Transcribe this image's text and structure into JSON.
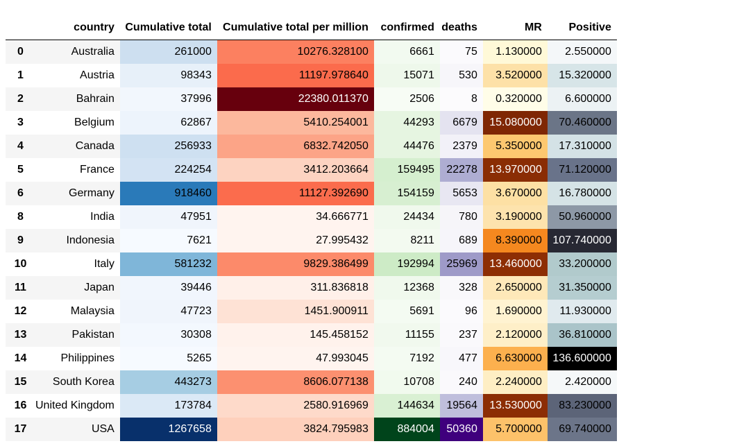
{
  "table": {
    "headers": [
      "",
      "country",
      "Cumulative total",
      "Cumulative total per million",
      "confirmed",
      "deaths",
      "MR",
      "Positive"
    ],
    "rows": [
      {
        "idx": "0",
        "country": "Australia",
        "cum": "261000",
        "pm": "10276.328100",
        "conf": "6661",
        "deaths": "75",
        "mr": "1.130000",
        "pos": "2.550000",
        "bg": [
          "#cddff0",
          "#fc8060",
          "#f2faf0",
          "#fbfafd",
          "#fff9d8",
          "#f4f7f9"
        ],
        "fg": [
          "#000",
          "#000",
          "#000",
          "#000",
          "#000",
          "#000"
        ]
      },
      {
        "idx": "1",
        "country": "Austria",
        "cum": "98343",
        "pm": "11197.978640",
        "conf": "15071",
        "deaths": "530",
        "mr": "3.520000",
        "pos": "15.320000",
        "bg": [
          "#e7f0f9",
          "#fb6b4c",
          "#eef8eb",
          "#f7f6fa",
          "#fde1a8",
          "#d7e5e8"
        ],
        "fg": [
          "#000",
          "#000",
          "#000",
          "#000",
          "#000",
          "#000"
        ]
      },
      {
        "idx": "2",
        "country": "Bahrain",
        "cum": "37996",
        "pm": "22380.011370",
        "conf": "2506",
        "deaths": "8",
        "mr": "0.320000",
        "pos": "6.600000",
        "bg": [
          "#f2f7fd",
          "#67000d",
          "#f7fcf5",
          "#fcfbfd",
          "#fffde8",
          "#ecf2f4"
        ],
        "fg": [
          "#000",
          "#fff",
          "#000",
          "#000",
          "#000",
          "#000"
        ]
      },
      {
        "idx": "3",
        "country": "Belgium",
        "cum": "62867",
        "pm": "5410.254001",
        "conf": "44293",
        "deaths": "6679",
        "mr": "15.080000",
        "pos": "70.460000",
        "bg": [
          "#edf4fc",
          "#fcb89d",
          "#e6f5e1",
          "#e4e3f0",
          "#7f2704",
          "#6b7587"
        ],
        "fg": [
          "#000",
          "#000",
          "#000",
          "#000",
          "#fff",
          "#000"
        ]
      },
      {
        "idx": "4",
        "country": "Canada",
        "cum": "256933",
        "pm": "6832.742050",
        "conf": "44476",
        "deaths": "2379",
        "mr": "5.350000",
        "pos": "17.310000",
        "bg": [
          "#cee0f1",
          "#fca487",
          "#e6f5e1",
          "#f2f1f8",
          "#fdc870",
          "#d4e2e6"
        ],
        "fg": [
          "#000",
          "#000",
          "#000",
          "#000",
          "#000",
          "#000"
        ]
      },
      {
        "idx": "5",
        "country": "France",
        "cum": "224254",
        "pm": "3412.203664",
        "conf": "159495",
        "deaths": "22278",
        "mr": "13.970000",
        "pos": "71.120000",
        "bg": [
          "#d3e3f3",
          "#fdd3c1",
          "#d5efcf",
          "#aeadd2",
          "#8a2d04",
          "#69738a"
        ],
        "fg": [
          "#000",
          "#000",
          "#000",
          "#000",
          "#fff",
          "#000"
        ]
      },
      {
        "idx": "6",
        "country": "Germany",
        "cum": "918460",
        "pm": "11127.392690",
        "conf": "154159",
        "deaths": "5653",
        "mr": "3.670000",
        "pos": "16.780000",
        "bg": [
          "#2a7ab9",
          "#fb6c4d",
          "#d7efd1",
          "#e8e7f2",
          "#fde0a4",
          "#d5e3e6"
        ],
        "fg": [
          "#000",
          "#000",
          "#000",
          "#000",
          "#000",
          "#000"
        ]
      },
      {
        "idx": "8",
        "country": "India",
        "cum": "47951",
        "pm": "34.666771",
        "conf": "24434",
        "deaths": "780",
        "mr": "3.190000",
        "pos": "50.960000",
        "bg": [
          "#f0f5fc",
          "#fff4ef",
          "#f0f9ed",
          "#f6f5f9",
          "#fde3ad",
          "#8d98a6"
        ],
        "fg": [
          "#000",
          "#000",
          "#000",
          "#000",
          "#000",
          "#000"
        ]
      },
      {
        "idx": "9",
        "country": "Indonesia",
        "cum": "7621",
        "pm": "27.995432",
        "conf": "8211",
        "deaths": "689",
        "mr": "8.390000",
        "pos": "107.740000",
        "bg": [
          "#f6faff",
          "#fff4ef",
          "#f3faf0",
          "#f6f5fa",
          "#f5881f",
          "#272833"
        ],
        "fg": [
          "#000",
          "#000",
          "#000",
          "#000",
          "#000",
          "#fff"
        ]
      },
      {
        "idx": "10",
        "country": "Italy",
        "cum": "581232",
        "pm": "9829.386499",
        "conf": "192994",
        "deaths": "25969",
        "mr": "13.460000",
        "pos": "33.200000",
        "bg": [
          "#7fb6d9",
          "#fc8a6a",
          "#cdebc6",
          "#9e9ac8",
          "#8d2e04",
          "#b1cacc"
        ],
        "fg": [
          "#000",
          "#000",
          "#000",
          "#000",
          "#fff",
          "#000"
        ]
      },
      {
        "idx": "11",
        "country": "Japan",
        "cum": "39446",
        "pm": "311.836818",
        "conf": "12368",
        "deaths": "328",
        "mr": "2.650000",
        "pos": "31.350000",
        "bg": [
          "#f1f6fd",
          "#fff0e9",
          "#f0f9ed",
          "#f9f8fb",
          "#fee8b9",
          "#b5cdd0"
        ],
        "fg": [
          "#000",
          "#000",
          "#000",
          "#000",
          "#000",
          "#000"
        ]
      },
      {
        "idx": "12",
        "country": "Malaysia",
        "cum": "47723",
        "pm": "1451.900911",
        "conf": "5691",
        "deaths": "96",
        "mr": "1.690000",
        "pos": "11.930000",
        "bg": [
          "#f0f5fc",
          "#fee2d5",
          "#f4fbf2",
          "#fbfafd",
          "#fff3d1",
          "#e0eaee"
        ],
        "fg": [
          "#000",
          "#000",
          "#000",
          "#000",
          "#000",
          "#000"
        ]
      },
      {
        "idx": "13",
        "country": "Pakistan",
        "cum": "30308",
        "pm": "145.458152",
        "conf": "11155",
        "deaths": "237",
        "mr": "2.120000",
        "pos": "36.810000",
        "bg": [
          "#f3f8fe",
          "#fff2ec",
          "#f1f9ee",
          "#faf9fc",
          "#feefc8",
          "#aac4c9"
        ],
        "fg": [
          "#000",
          "#000",
          "#000",
          "#000",
          "#000",
          "#000"
        ]
      },
      {
        "idx": "14",
        "country": "Philippines",
        "cum": "5265",
        "pm": "47.993045",
        "conf": "7192",
        "deaths": "477",
        "mr": "6.630000",
        "pos": "136.600000",
        "bg": [
          "#f6faff",
          "#fff4ef",
          "#f4fbf2",
          "#f8f7fb",
          "#fcb04e",
          "#000000"
        ],
        "fg": [
          "#000",
          "#000",
          "#000",
          "#000",
          "#000",
          "#fff"
        ]
      },
      {
        "idx": "15",
        "country": "South Korea",
        "cum": "443273",
        "pm": "8606.077138",
        "conf": "10708",
        "deaths": "240",
        "mr": "2.240000",
        "pos": "2.420000",
        "bg": [
          "#a6cde3",
          "#fc9070",
          "#f1faee",
          "#faf9fc",
          "#feeec4",
          "#f5f8f9"
        ],
        "fg": [
          "#000",
          "#000",
          "#000",
          "#000",
          "#000",
          "#000"
        ]
      },
      {
        "idx": "16",
        "country": "United Kingdom",
        "cum": "173784",
        "pm": "2580.916969",
        "conf": "144634",
        "deaths": "19564",
        "mr": "13.530000",
        "pos": "83.230000",
        "bg": [
          "#dbe9f6",
          "#fedaca",
          "#d9f0d3",
          "#bfbedc",
          "#8c2d04",
          "#5c6478"
        ],
        "fg": [
          "#000",
          "#000",
          "#000",
          "#000",
          "#fff",
          "#000"
        ]
      },
      {
        "idx": "17",
        "country": "USA",
        "cum": "1267658",
        "pm": "3824.795983",
        "conf": "884004",
        "deaths": "50360",
        "mr": "5.700000",
        "pos": "69.740000",
        "bg": [
          "#08306b",
          "#fed0bc",
          "#00441b",
          "#3f007d",
          "#fdc26a",
          "#6c7589"
        ],
        "fg": [
          "#fff",
          "#000",
          "#fff",
          "#fff",
          "#000",
          "#000"
        ]
      }
    ]
  }
}
